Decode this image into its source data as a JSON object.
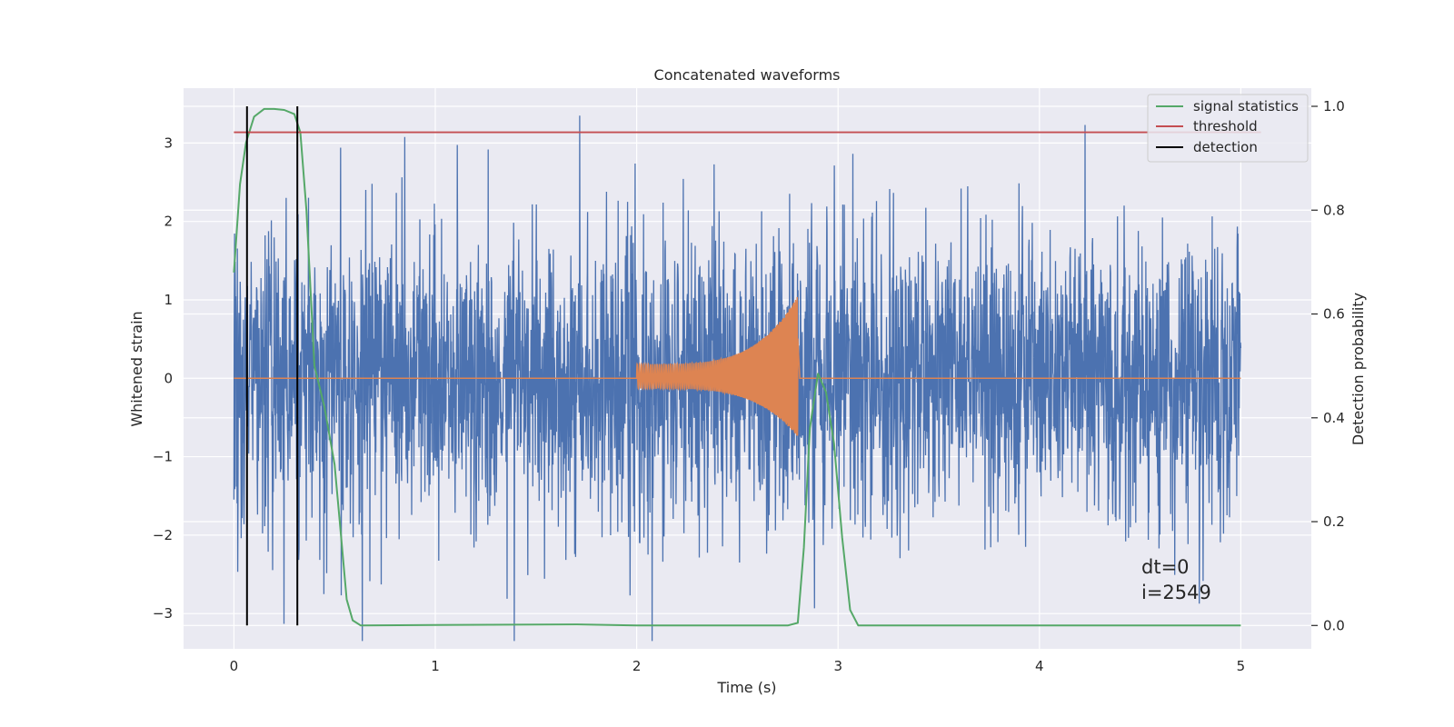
{
  "chart_data": {
    "type": "line",
    "title": "Concatenated waveforms",
    "xlabel": "Time (s)",
    "ylabel": "Whitened strain",
    "y2label": "Detection probability",
    "xlim": [
      -0.25,
      5.35
    ],
    "ylim": [
      -3.45,
      3.7
    ],
    "y2lim": [
      -0.045,
      1.035
    ],
    "xticks": [
      0,
      1,
      2,
      3,
      4,
      5
    ],
    "xtick_labels": [
      "0",
      "1",
      "2",
      "3",
      "4",
      "5"
    ],
    "yticks": [
      -3,
      -2,
      -1,
      0,
      1,
      2,
      3
    ],
    "ytick_labels": [
      "−3",
      "−2",
      "−1",
      "0",
      "1",
      "2",
      "3"
    ],
    "y2ticks": [
      0.0,
      0.2,
      0.4,
      0.6,
      0.8,
      1.0
    ],
    "y2tick_labels": [
      "0.0",
      "0.2",
      "0.4",
      "0.6",
      "0.8",
      "1.0"
    ],
    "grid": true,
    "legend_position": "top-right",
    "series": [
      {
        "name": "",
        "axis": "left",
        "color": "#4c72b0",
        "description": "whitened noisy strain",
        "x_range": [
          0,
          5
        ],
        "typical_amplitude": 0.9,
        "max_abs": 3.35
      },
      {
        "name": "",
        "axis": "left",
        "color": "#dd8452",
        "description": "injected chirp waveform",
        "x_range": [
          0,
          5
        ],
        "chirp_start": 2.0,
        "chirp_end": 2.8,
        "amplitude_start": 0.18,
        "amplitude_peak": 1.05,
        "peak_negative": -0.75
      },
      {
        "name": "signal statistics",
        "axis": "right",
        "color": "#55a868",
        "x": [
          0.0,
          0.03,
          0.06,
          0.1,
          0.15,
          0.2,
          0.25,
          0.3,
          0.33,
          0.36,
          0.4,
          0.45,
          0.5,
          0.53,
          0.56,
          0.59,
          0.63,
          1.0,
          1.7,
          2.0,
          2.75,
          2.8,
          2.83,
          2.86,
          2.9,
          2.94,
          2.98,
          3.02,
          3.06,
          3.1,
          3.2,
          4.0,
          5.0
        ],
        "y": [
          0.68,
          0.85,
          0.93,
          0.98,
          0.995,
          0.995,
          0.993,
          0.985,
          0.95,
          0.8,
          0.5,
          0.42,
          0.31,
          0.18,
          0.05,
          0.01,
          0.0,
          0.001,
          0.002,
          0.0,
          0.0,
          0.005,
          0.15,
          0.38,
          0.485,
          0.45,
          0.35,
          0.17,
          0.03,
          0.0,
          0.0,
          0.0,
          0.0
        ]
      },
      {
        "name": "threshold",
        "axis": "right",
        "color": "#c44e52",
        "x": [
          0.0,
          5.1
        ],
        "y": [
          0.95,
          0.95
        ]
      },
      {
        "name": "detection",
        "axis": "right",
        "color": "#000000",
        "x": [
          0.065,
          0.315
        ],
        "y_range": [
          0.0,
          1.0
        ]
      }
    ],
    "annotations": [
      "dt=0",
      "i=2549"
    ]
  }
}
